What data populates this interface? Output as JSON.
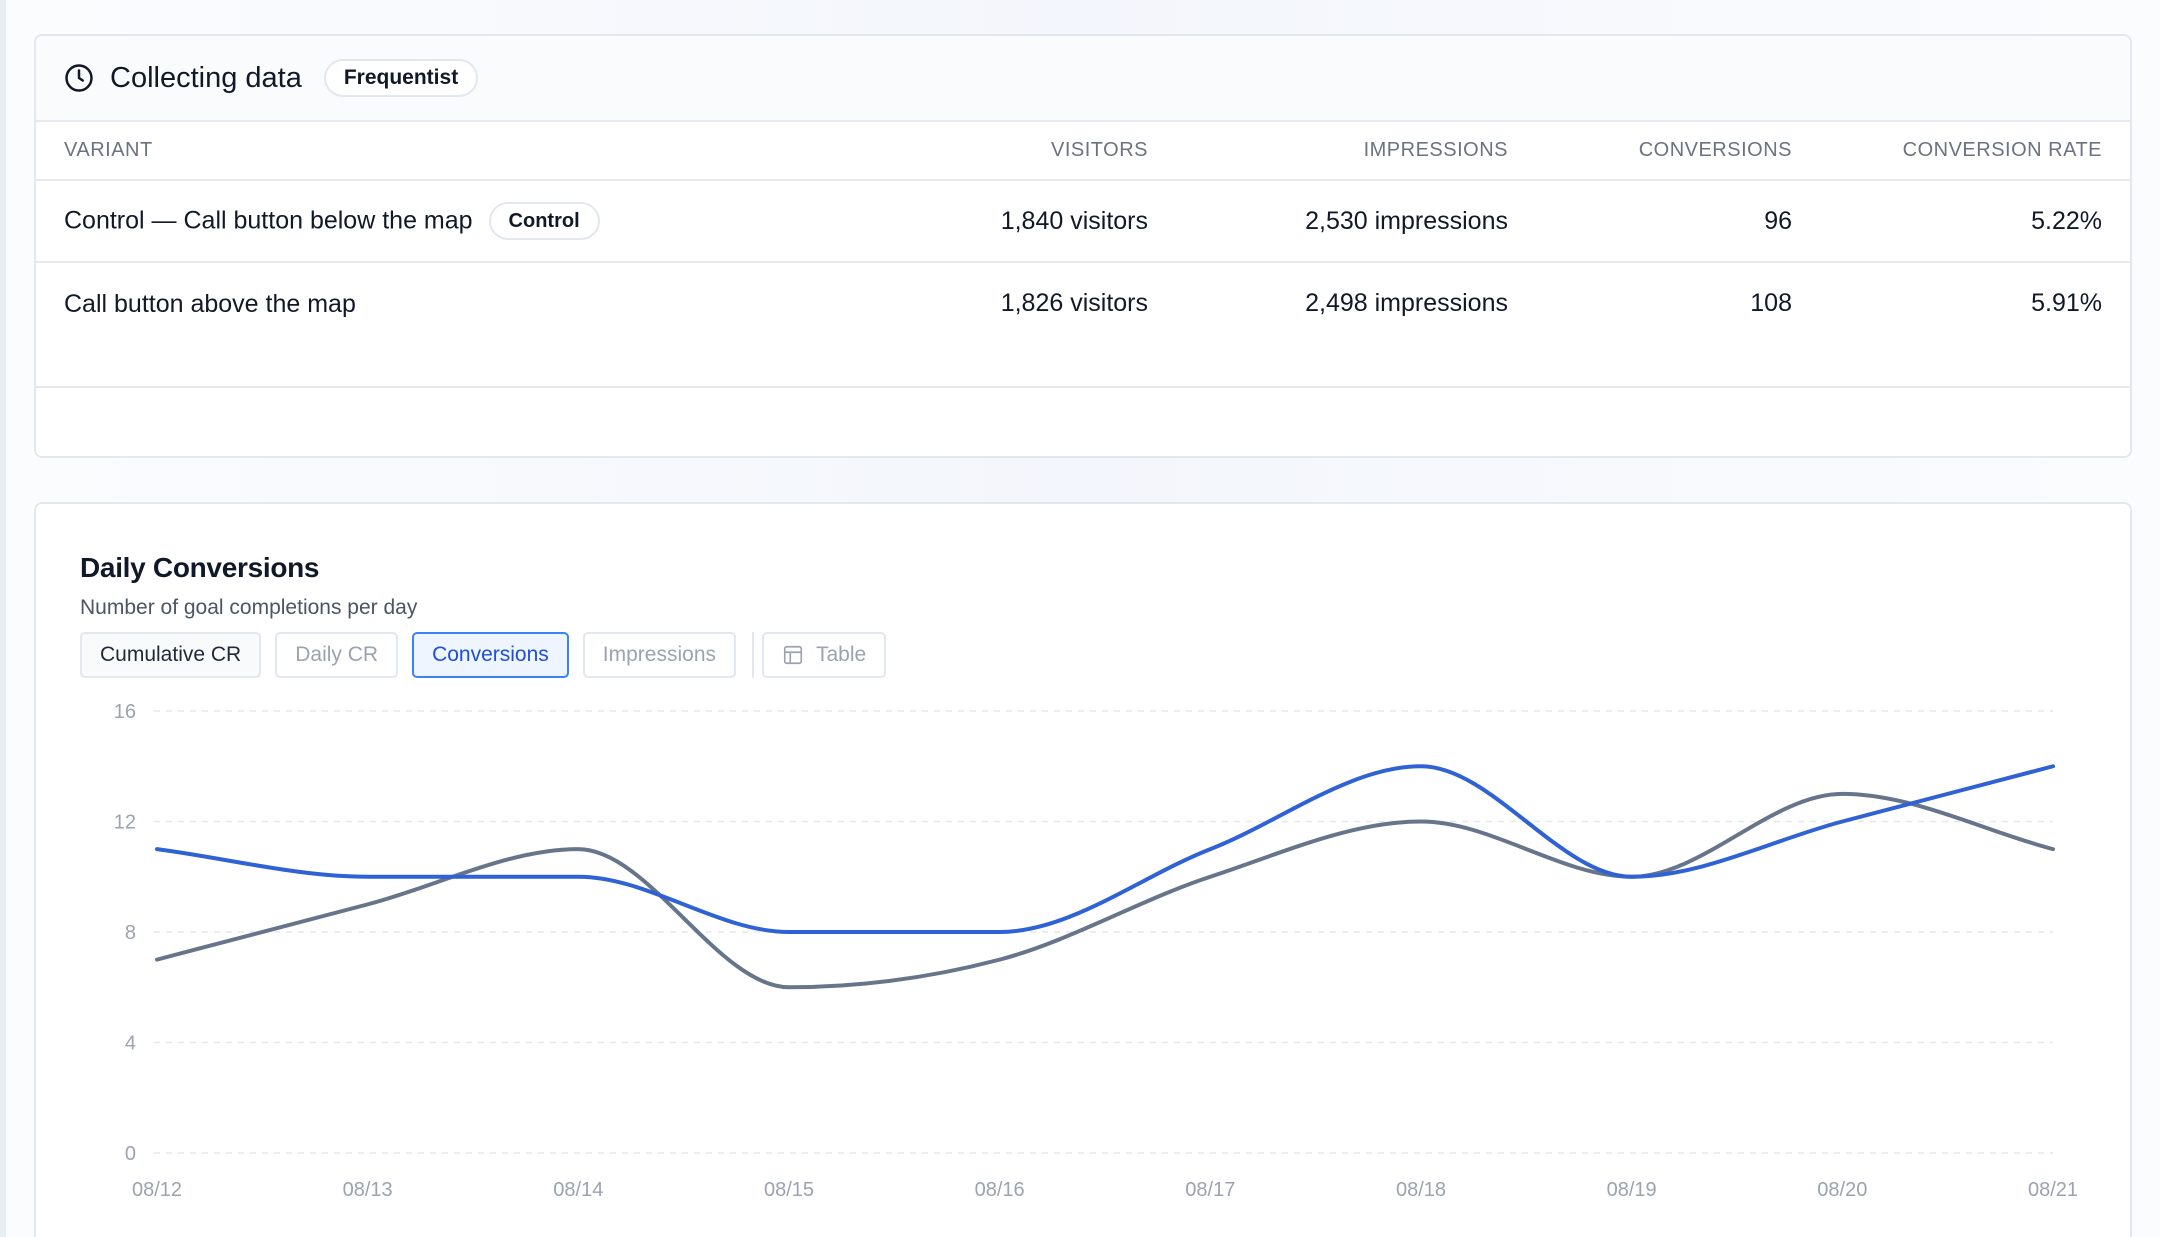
{
  "results": {
    "status_title": "Collecting data",
    "method_badge": "Frequentist",
    "columns": {
      "variant": "VARIANT",
      "visitors": "VISITORS",
      "impressions": "IMPRESSIONS",
      "conversions": "CONVERSIONS",
      "conversion_rate": "CONVERSION RATE"
    },
    "rows": [
      {
        "name": "Control — Call button below the map",
        "badge": "Control",
        "visitors": "1,840 visitors",
        "impressions": "2,530 impressions",
        "conversions": "96",
        "conversion_rate": "5.22%"
      },
      {
        "name": "Call button above the map",
        "visitors": "1,826 visitors",
        "impressions": "2,498 impressions",
        "conversions": "108",
        "conversion_rate": "5.91%"
      }
    ]
  },
  "chart_panel": {
    "title": "Daily Conversions",
    "subtitle": "Number of goal completions per day",
    "tabs": {
      "cumulative_cr": "Cumulative CR",
      "daily_cr": "Daily CR",
      "conversions": "Conversions",
      "impressions": "Impressions",
      "table": "Table"
    },
    "active_tab": "conversions"
  },
  "chart_data": {
    "type": "line",
    "x": [
      "08/12",
      "08/13",
      "08/14",
      "08/15",
      "08/16",
      "08/17",
      "08/18",
      "08/19",
      "08/20",
      "08/21"
    ],
    "yticks": [
      "0",
      "4",
      "8",
      "12",
      "16"
    ],
    "ylim": [
      0,
      16
    ],
    "grid": true,
    "series": [
      {
        "color": "#2f62d4",
        "values": [
          11,
          10,
          10,
          8,
          8,
          11,
          14,
          10,
          12,
          14
        ]
      },
      {
        "color": "#67758a",
        "values": [
          7,
          9,
          11,
          6,
          7,
          10,
          12,
          10,
          13,
          11
        ]
      }
    ]
  }
}
